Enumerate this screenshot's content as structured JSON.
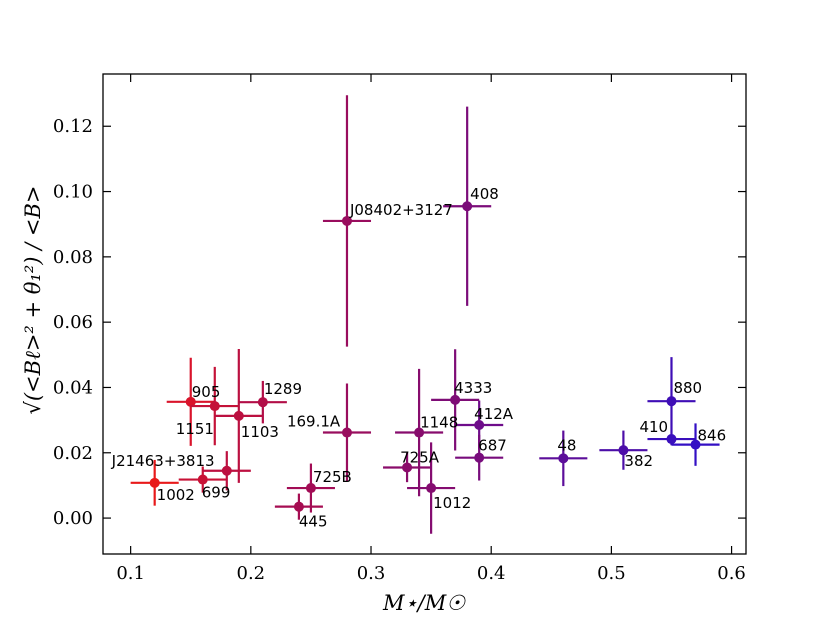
{
  "chart_data": {
    "type": "scatter",
    "title": "",
    "xlabel": "M⋆/M☉",
    "ylabel": "√(<Bℓ>² + θ₁²) / <B>",
    "xlim": [
      0.077,
      0.612
    ],
    "ylim": [
      -0.011,
      0.136
    ],
    "xticks": [
      0.1,
      0.2,
      0.3,
      0.4,
      0.5,
      0.6
    ],
    "xtick_labels": [
      "0.1",
      "0.2",
      "0.3",
      "0.4",
      "0.5",
      "0.6"
    ],
    "yticks": [
      0.0,
      0.02,
      0.04,
      0.06,
      0.08,
      0.1,
      0.12
    ],
    "ytick_labels": [
      "0.00",
      "0.02",
      "0.04",
      "0.06",
      "0.08",
      "0.10",
      "0.12"
    ],
    "grid": false,
    "legend": "none",
    "points": [
      {
        "label": "J21463+3813",
        "x": 0.12,
        "y": 0.0108,
        "xerr": 0.02,
        "yerr": 0.007,
        "color": "#e8191a"
      },
      {
        "label": "1002",
        "x": 0.12,
        "y": 0.0108,
        "xerr": 0.0,
        "yerr": 0.0,
        "color": "#e8191a",
        "label_only": true
      },
      {
        "label": "905",
        "x": 0.15,
        "y": 0.0356,
        "xerr": 0.02,
        "yerr": 0.0135,
        "color": "#d9142b"
      },
      {
        "label": "699",
        "x": 0.16,
        "y": 0.0118,
        "xerr": 0.02,
        "yerr": 0.004,
        "color": "#c81236"
      },
      {
        "label": "1151",
        "x": 0.17,
        "y": 0.0343,
        "xerr": 0.02,
        "yerr": 0.012,
        "color": "#c41238"
      },
      {
        "label": "",
        "x": 0.18,
        "y": 0.0145,
        "xerr": 0.02,
        "yerr": 0.006,
        "color": "#bd1040"
      },
      {
        "label": "1103",
        "x": 0.19,
        "y": 0.0313,
        "xerr": 0.02,
        "yerr": 0.0205,
        "color": "#bb1040"
      },
      {
        "label": "1289",
        "x": 0.21,
        "y": 0.0355,
        "xerr": 0.02,
        "yerr": 0.0065,
        "color": "#b20e47"
      },
      {
        "label": "445",
        "x": 0.24,
        "y": 0.0035,
        "xerr": 0.02,
        "yerr": 0.004,
        "color": "#a60d52"
      },
      {
        "label": "725B",
        "x": 0.25,
        "y": 0.0092,
        "xerr": 0.02,
        "yerr": 0.0075,
        "color": "#a20c55"
      },
      {
        "label": "169.1A",
        "x": 0.28,
        "y": 0.0262,
        "xerr": 0.02,
        "yerr": 0.015,
        "color": "#990d5e"
      },
      {
        "label": "J08402+3127",
        "x": 0.28,
        "y": 0.091,
        "xerr": 0.02,
        "yerr": 0.0385,
        "color": "#990d5e"
      },
      {
        "label": "725A",
        "x": 0.33,
        "y": 0.0155,
        "xerr": 0.02,
        "yerr": 0.0045,
        "color": "#8a0c6a"
      },
      {
        "label": "1148",
        "x": 0.34,
        "y": 0.0262,
        "xerr": 0.02,
        "yerr": 0.0195,
        "color": "#870c6d"
      },
      {
        "label": "1012",
        "x": 0.35,
        "y": 0.0092,
        "xerr": 0.02,
        "yerr": 0.014,
        "color": "#840c70"
      },
      {
        "label": "4333",
        "x": 0.37,
        "y": 0.0362,
        "xerr": 0.02,
        "yerr": 0.0155,
        "color": "#7e0c76"
      },
      {
        "label": "408",
        "x": 0.38,
        "y": 0.0955,
        "xerr": 0.02,
        "yerr": 0.0305,
        "color": "#7b0c79"
      },
      {
        "label": "412A",
        "x": 0.39,
        "y": 0.0285,
        "xerr": 0.02,
        "yerr": 0.0075,
        "color": "#6e0c8a"
      },
      {
        "label": "687",
        "x": 0.39,
        "y": 0.0185,
        "xerr": 0.02,
        "yerr": 0.007,
        "color": "#780c7c"
      },
      {
        "label": "48",
        "x": 0.46,
        "y": 0.0183,
        "xerr": 0.02,
        "yerr": 0.0085,
        "color": "#5c0e9a"
      },
      {
        "label": "382",
        "x": 0.51,
        "y": 0.0208,
        "xerr": 0.02,
        "yerr": 0.006,
        "color": "#4c0ea8"
      },
      {
        "label": "880",
        "x": 0.55,
        "y": 0.0358,
        "xerr": 0.02,
        "yerr": 0.0135,
        "color": "#3f0eb6"
      },
      {
        "label": "410",
        "x": 0.55,
        "y": 0.0242,
        "xerr": 0.02,
        "yerr": 0.0,
        "color": "#3a0fbc"
      },
      {
        "label": "846",
        "x": 0.57,
        "y": 0.0225,
        "xerr": 0.02,
        "yerr": 0.0065,
        "color": "#330fc4"
      }
    ]
  }
}
